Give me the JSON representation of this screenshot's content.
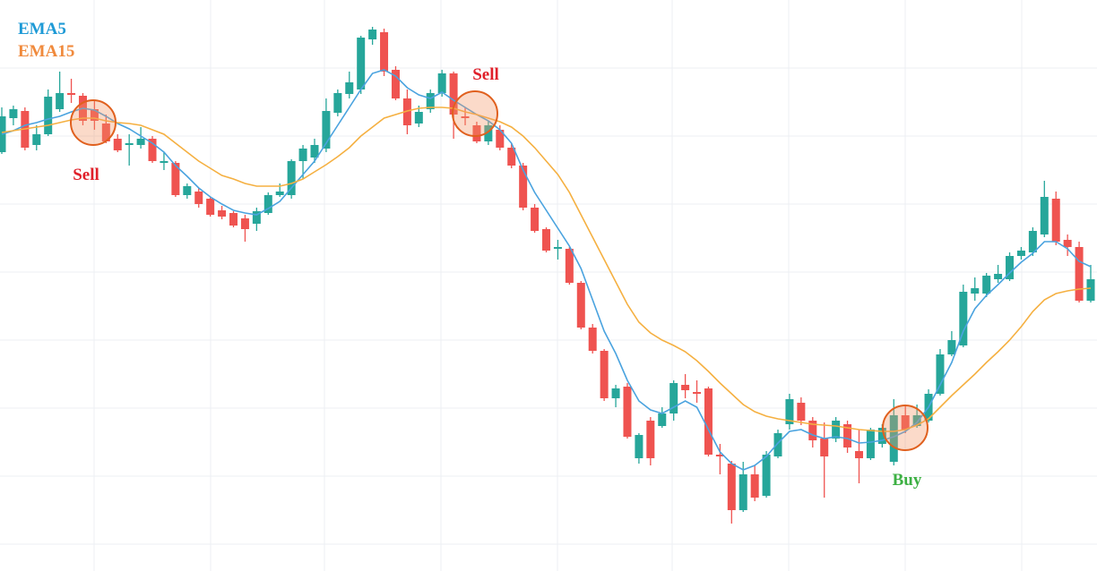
{
  "chart_data": {
    "type": "candlestick",
    "open": [
      468,
      506,
      514,
      476,
      488,
      516,
      534,
      531,
      516,
      500,
      483,
      476,
      476,
      483,
      456,
      456,
      420,
      424,
      416,
      403,
      400,
      394,
      388,
      400,
      420,
      420,
      458,
      462,
      472,
      512,
      533,
      538,
      594,
      602,
      560,
      528,
      500,
      516,
      534,
      556,
      508,
      498,
      480,
      493,
      473,
      453,
      406,
      382,
      360,
      360,
      322,
      272,
      246,
      193,
      206,
      126,
      168,
      162,
      176,
      208,
      200,
      204,
      130,
      120,
      68,
      108,
      84,
      128,
      164,
      188,
      168,
      148,
      148,
      164,
      134,
      126,
      142,
      122,
      174,
      162,
      168,
      198,
      242,
      252,
      310,
      310,
      326,
      326,
      352,
      356,
      376,
      416,
      370,
      362,
      302
    ],
    "high": [
      518,
      520,
      518,
      498,
      538,
      558,
      550,
      534,
      526,
      510,
      488,
      488,
      496,
      486,
      468,
      458,
      433,
      428,
      418,
      408,
      402,
      398,
      406,
      423,
      433,
      460,
      476,
      483,
      528,
      538,
      558,
      598,
      608,
      606,
      564,
      538,
      520,
      538,
      560,
      558,
      518,
      502,
      503,
      498,
      478,
      456,
      410,
      384,
      370,
      362,
      324,
      276,
      248,
      208,
      210,
      154,
      172,
      183,
      213,
      220,
      213,
      206,
      142,
      123,
      122,
      118,
      134,
      158,
      198,
      194,
      172,
      166,
      172,
      168,
      158,
      160,
      164,
      192,
      184,
      186,
      203,
      248,
      268,
      320,
      328,
      333,
      342,
      356,
      362,
      384,
      436,
      424,
      376,
      368,
      342
    ],
    "low": [
      466,
      498,
      470,
      470,
      486,
      513,
      523,
      498,
      493,
      478,
      468,
      453,
      472,
      456,
      448,
      418,
      416,
      406,
      396,
      393,
      384,
      368,
      380,
      398,
      418,
      416,
      438,
      456,
      468,
      508,
      528,
      533,
      588,
      553,
      526,
      488,
      496,
      512,
      530,
      483,
      498,
      478,
      476,
      470,
      450,
      403,
      378,
      356,
      348,
      320,
      270,
      243,
      190,
      183,
      148,
      120,
      118,
      160,
      168,
      193,
      188,
      128,
      108,
      53,
      66,
      78,
      82,
      126,
      158,
      163,
      138,
      82,
      144,
      132,
      98,
      124,
      138,
      118,
      154,
      160,
      166,
      196,
      240,
      250,
      302,
      306,
      322,
      324,
      348,
      352,
      373,
      364,
      352,
      300,
      300
    ],
    "close": [
      508,
      516,
      473,
      488,
      530,
      534,
      532,
      503,
      503,
      480,
      470,
      478,
      483,
      458,
      458,
      420,
      430,
      410,
      398,
      396,
      386,
      382,
      402,
      420,
      424,
      458,
      472,
      476,
      514,
      534,
      546,
      596,
      605,
      558,
      528,
      498,
      513,
      534,
      556,
      510,
      506,
      480,
      498,
      473,
      453,
      406,
      380,
      358,
      362,
      322,
      272,
      246,
      193,
      204,
      150,
      152,
      126,
      176,
      210,
      202,
      198,
      130,
      128,
      68,
      108,
      82,
      130,
      154,
      192,
      168,
      146,
      128,
      168,
      138,
      126,
      158,
      160,
      174,
      158,
      174,
      198,
      242,
      258,
      312,
      316,
      330,
      332,
      352,
      358,
      380,
      418,
      368,
      362,
      302,
      326
    ],
    "up_color": "#26a69a",
    "down_color": "#ef5350",
    "series": [
      {
        "name": "EMA5",
        "color": "#1e9ad6",
        "line_color": "#4aa3df",
        "values": [
          488,
          492,
          498,
          501,
          505,
          508,
          513,
          517,
          515,
          508,
          500,
          494,
          486,
          478,
          468,
          453,
          441,
          428,
          418,
          410,
          403,
          400,
          398,
          405,
          413,
          428,
          443,
          458,
          478,
          498,
          518,
          538,
          556,
          560,
          553,
          540,
          532,
          528,
          535,
          526,
          518,
          510,
          503,
          493,
          478,
          448,
          423,
          403,
          383,
          363,
          338,
          303,
          268,
          243,
          213,
          190,
          180,
          176,
          183,
          190,
          183,
          158,
          133,
          120,
          113,
          118,
          128,
          143,
          156,
          158,
          152,
          148,
          150,
          148,
          143,
          144,
          146,
          150,
          156,
          166,
          183,
          208,
          233,
          268,
          293,
          308,
          320,
          333,
          345,
          355,
          368,
          368,
          360,
          346,
          340
        ]
      },
      {
        "name": "EMA15",
        "color": "#f08a3c",
        "line_color": "#f5b041",
        "values": [
          490,
          492,
          494,
          496,
          498,
          501,
          504,
          506,
          506,
          503,
          501,
          500,
          498,
          493,
          488,
          478,
          468,
          458,
          450,
          442,
          438,
          433,
          430,
          430,
          430,
          433,
          438,
          446,
          454,
          463,
          473,
          486,
          496,
          506,
          510,
          514,
          517,
          518,
          518,
          517,
          513,
          510,
          506,
          502,
          496,
          486,
          473,
          458,
          443,
          423,
          398,
          373,
          348,
          323,
          298,
          278,
          266,
          258,
          252,
          245,
          235,
          223,
          210,
          198,
          186,
          178,
          173,
          170,
          168,
          166,
          164,
          163,
          162,
          160,
          158,
          157,
          156,
          156,
          158,
          163,
          170,
          183,
          196,
          208,
          220,
          233,
          245,
          258,
          273,
          290,
          303,
          310,
          313,
          315,
          316
        ]
      }
    ],
    "annotations": [
      {
        "text": "Sell",
        "color": "#e0202a"
      },
      {
        "text": "Sell",
        "color": "#e0202a"
      },
      {
        "text": "Buy",
        "color": "#3cb043"
      }
    ],
    "ylim": [
      0,
      638
    ]
  }
}
